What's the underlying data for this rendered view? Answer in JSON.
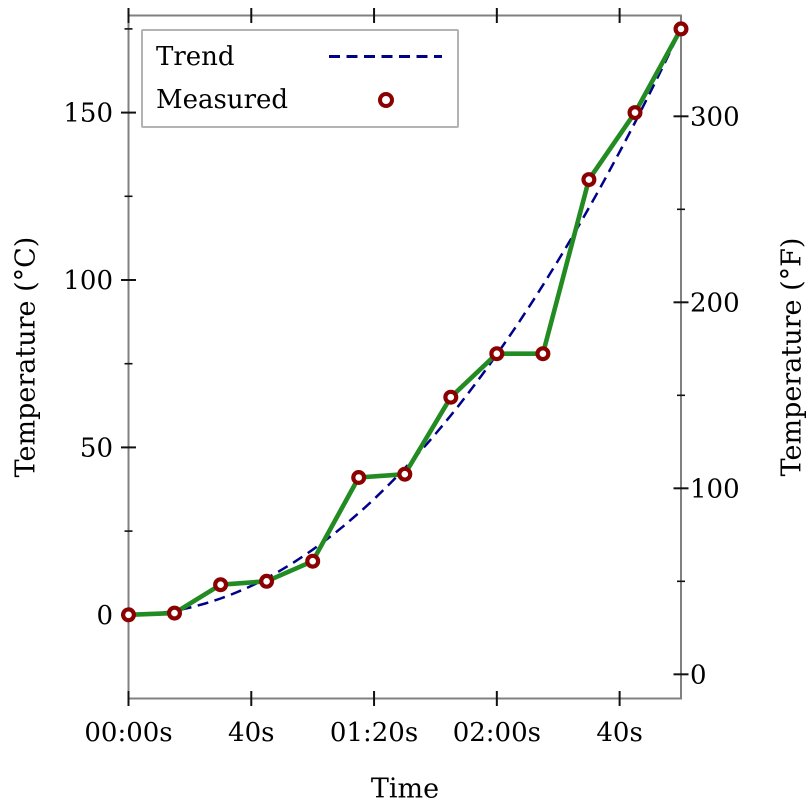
{
  "figure": {
    "background": "#ffffff"
  },
  "legend": {
    "position": "upper left",
    "items": [
      {
        "label": "Trend",
        "sample": "dashed-line",
        "color": "#00008B"
      },
      {
        "label": "Measured",
        "sample": "open-circle",
        "color": "#8B0000"
      }
    ]
  },
  "chart_data": {
    "type": "line",
    "title": "",
    "xlabel": "Time",
    "ylabel_left": "Temperature (°C)",
    "ylabel_right": "Temperature (°F)",
    "xlim": [
      0,
      180
    ],
    "ylim_c": [
      -25,
      179
    ],
    "ylim_f_equivalent": [
      -13,
      354.2
    ],
    "grid": false,
    "legend_position": "upper left",
    "x_ticks": [
      {
        "t": 0,
        "label": "00:00s"
      },
      {
        "t": 40,
        "label": "40s"
      },
      {
        "t": 80,
        "label": "01:20s"
      },
      {
        "t": 120,
        "label": "02:00s"
      },
      {
        "t": 160,
        "label": "40s"
      }
    ],
    "y_ticks_left_c": {
      "major": [
        {
          "v": 0,
          "label": "0"
        },
        {
          "v": 50,
          "label": "50"
        },
        {
          "v": 100,
          "label": "100"
        },
        {
          "v": 150,
          "label": "150"
        }
      ],
      "minor": [
        25,
        75,
        125,
        175
      ]
    },
    "y_ticks_right_f": {
      "major": [
        {
          "v": 0,
          "label": "0"
        },
        {
          "v": 100,
          "label": "100"
        },
        {
          "v": 200,
          "label": "200"
        },
        {
          "v": 300,
          "label": "300"
        }
      ],
      "minor": [
        50,
        150,
        250,
        350
      ]
    },
    "series": [
      {
        "name": "Measured",
        "style": "solid-line-with-open-circle-markers",
        "line_color": "#228B22",
        "marker_color": "#8B0000",
        "x_seconds": [
          0,
          15,
          30,
          45,
          60,
          75,
          90,
          105,
          120,
          135,
          150,
          165,
          180
        ],
        "y_celsius": [
          0,
          0.5,
          9,
          10,
          16,
          41,
          42,
          65,
          78,
          78,
          130,
          150,
          175
        ]
      },
      {
        "name": "Trend",
        "style": "dashed-line",
        "color": "#00008B",
        "formula": "y = 175 * (t/180)^2",
        "coef": 175,
        "t_max": 180
      }
    ],
    "styles": {
      "spine_color": "#808080",
      "tick_color": "#111111",
      "text_color": "#000000",
      "line_width_measured": 4.6,
      "line_width_trend": 2.5,
      "dash_pattern": [
        11,
        6.5
      ]
    }
  }
}
